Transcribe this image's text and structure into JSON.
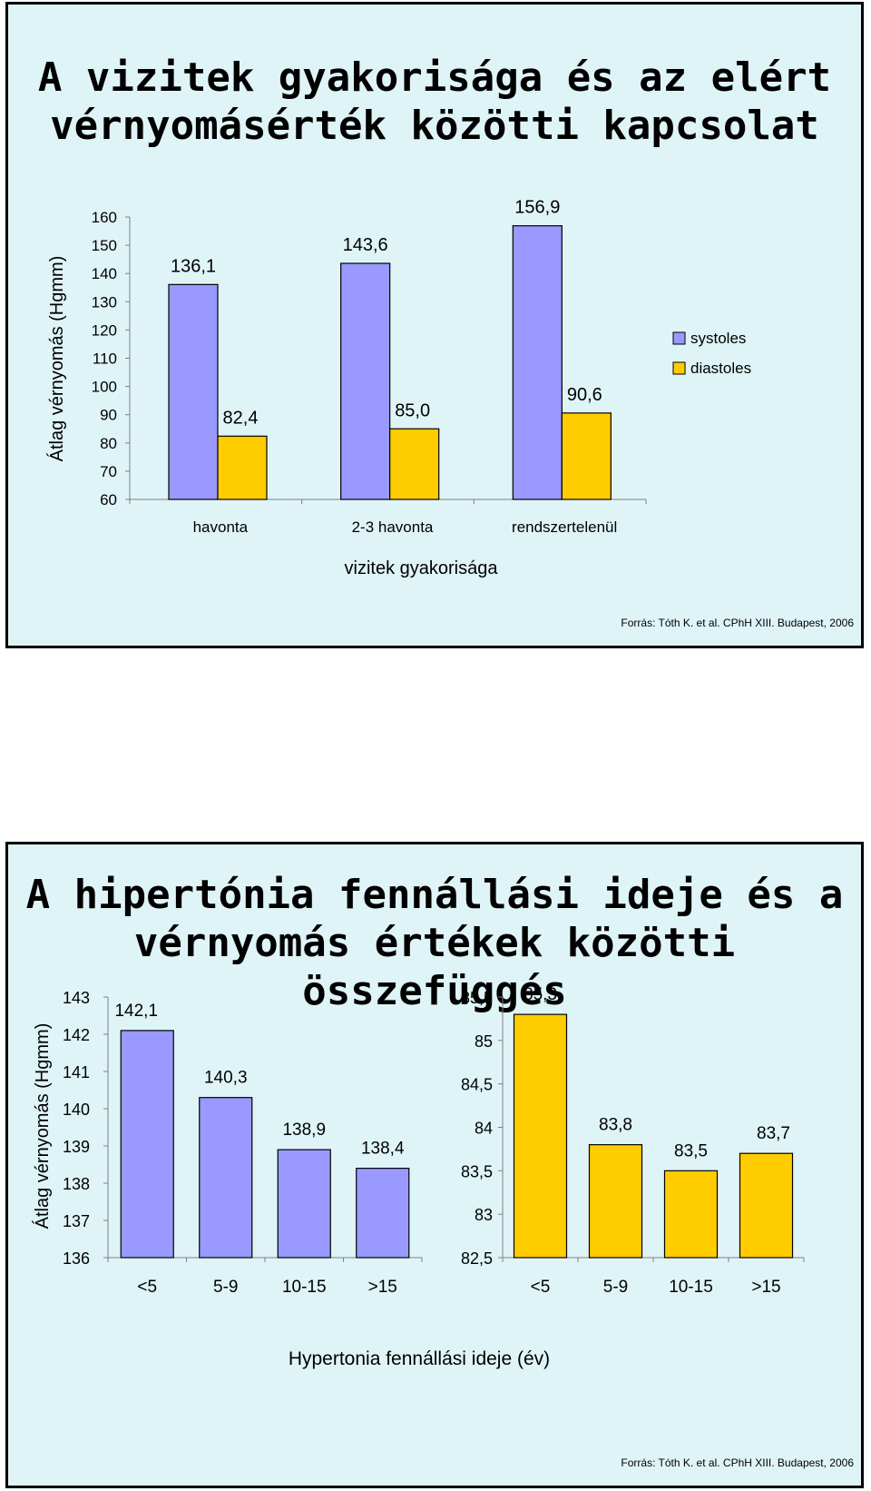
{
  "chart_data": [
    {
      "type": "bar",
      "title": "A vizitek gyakorisága és az elért vérnyomásérték közötti kapcsolat",
      "ylabel": "Átlag vérnyomás (Hgmm)",
      "xlabel": "vizitek gyakorisága",
      "ylim": [
        60,
        160
      ],
      "yticks": [
        "60",
        "70",
        "80",
        "90",
        "100",
        "110",
        "120",
        "130",
        "140",
        "150",
        "160"
      ],
      "categories": [
        "havonta",
        "2-3 havonta",
        "rendszertelenül"
      ],
      "series": [
        {
          "name": "systoles",
          "color": "#9999ff",
          "values": [
            136.1,
            143.6,
            156.9
          ],
          "labels": [
            "136,1",
            "143,6",
            "156,9"
          ]
        },
        {
          "name": "diastoles",
          "color": "#ffcc00",
          "values": [
            82.4,
            85.0,
            90.6
          ],
          "labels": [
            "82,4",
            "85,0",
            "90,6"
          ]
        }
      ],
      "legend_position": "right",
      "grid": false,
      "source": "Forrás: Tóth K. et al. CPhH XIII. Budapest, 2006"
    },
    {
      "type": "bar",
      "title": "A hipertónia fennállási ideje és a vérnyomás értékek közötti összefüggés",
      "ylabel": "Átlag vérnyomás (Hgmm)",
      "xlabel": "Hypertonia fennállási ideje (év)",
      "source": "Forrás: Tóth K. et al. CPhH XIII. Budapest, 2006",
      "subcharts": [
        {
          "ylim": [
            136,
            143
          ],
          "yticks": [
            "136",
            "137",
            "138",
            "139",
            "140",
            "141",
            "142",
            "143"
          ],
          "categories": [
            "<5",
            "5-9",
            "10-15",
            ">15"
          ],
          "values": [
            142.1,
            140.3,
            138.9,
            138.4
          ],
          "labels": [
            "142,1",
            "140,3",
            "138,9",
            "138,4"
          ],
          "color": "#9999ff"
        },
        {
          "ylim": [
            82.5,
            85.5
          ],
          "yticks": [
            "82,5",
            "83",
            "83,5",
            "84",
            "84,5",
            "85",
            "85,5"
          ],
          "categories": [
            "<5",
            "5-9",
            "10-15",
            ">15"
          ],
          "values": [
            85.3,
            83.8,
            83.5,
            83.7
          ],
          "labels": [
            "85,3",
            "83,8",
            "83,5",
            "83,7"
          ],
          "color": "#ffcc00"
        }
      ]
    }
  ]
}
